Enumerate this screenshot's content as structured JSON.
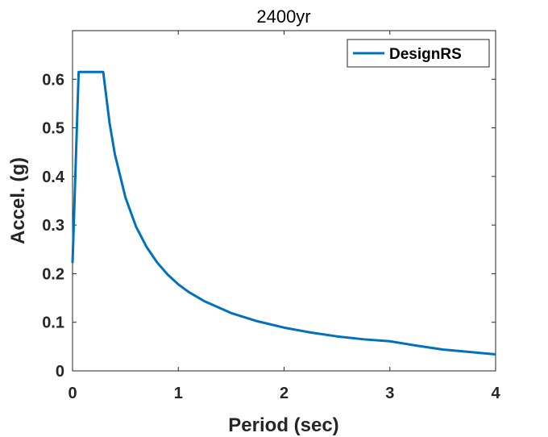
{
  "chart_data": {
    "type": "line",
    "title": "2400yr",
    "xlabel": "Period (sec)",
    "ylabel": "Accel. (g)",
    "xlim": [
      0,
      4
    ],
    "ylim": [
      0,
      0.7
    ],
    "xticks": [
      "0",
      "1",
      "2",
      "3",
      "4"
    ],
    "yticks": [
      "0",
      "0.1",
      "0.2",
      "0.3",
      "0.4",
      "0.5",
      "0.6"
    ],
    "grid": false,
    "legend_position": "top-right",
    "series": [
      {
        "name": "DesignRS",
        "color": "#0072BD",
        "x": [
          0,
          0.058,
          0.1,
          0.2,
          0.29,
          0.35,
          0.4,
          0.5,
          0.6,
          0.7,
          0.8,
          0.9,
          1.0,
          1.1,
          1.25,
          1.5,
          1.75,
          2.0,
          2.25,
          2.5,
          2.75,
          3.0,
          3.25,
          3.5,
          3.75,
          4.0
        ],
        "y": [
          0.222,
          0.615,
          0.615,
          0.615,
          0.615,
          0.51,
          0.446,
          0.357,
          0.297,
          0.255,
          0.223,
          0.198,
          0.178,
          0.162,
          0.143,
          0.119,
          0.102,
          0.089,
          0.079,
          0.071,
          0.065,
          0.061,
          0.052,
          0.044,
          0.039,
          0.034
        ]
      }
    ]
  }
}
